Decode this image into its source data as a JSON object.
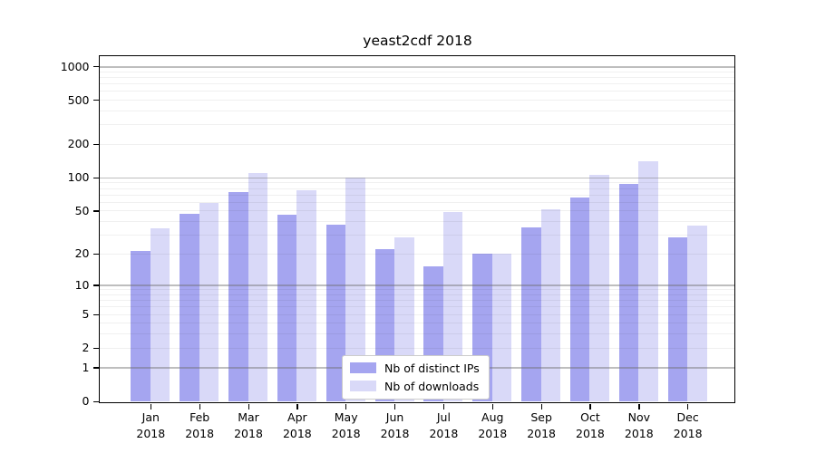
{
  "title": "yeast2cdf 2018",
  "chart_data": {
    "type": "bar",
    "title": "yeast2cdf 2018",
    "xlabel": "",
    "ylabel": "",
    "x": {
      "months": [
        "Jan",
        "Feb",
        "Mar",
        "Apr",
        "May",
        "Jun",
        "Jul",
        "Aug",
        "Sep",
        "Oct",
        "Nov",
        "Dec"
      ],
      "year": "2018"
    },
    "series": [
      {
        "name": "Nb of distinct IPs",
        "color": "#a5a5f0",
        "values": [
          21,
          47,
          74,
          46,
          37,
          22,
          15,
          20,
          35,
          66,
          87,
          28
        ]
      },
      {
        "name": "Nb of downloads",
        "color": "#d9d9f8",
        "values": [
          34,
          59,
          109,
          77,
          100,
          28,
          48,
          20,
          51,
          106,
          140,
          36
        ]
      }
    ],
    "y_axis": {
      "scale": "log1p",
      "tick_labels": [
        "0",
        "1",
        "2",
        "5",
        "10",
        "20",
        "50",
        "100",
        "200",
        "500",
        "1000"
      ],
      "tick_values": [
        0,
        1,
        2,
        5,
        10,
        20,
        50,
        100,
        200,
        500,
        1000
      ],
      "major_gridline_values": [
        1,
        10,
        100,
        1000
      ],
      "ylim": [
        0,
        1250
      ],
      "grid": "on"
    },
    "legend": {
      "position": "lower center",
      "entries": [
        "Nb of distinct IPs",
        "Nb of downloads"
      ]
    }
  }
}
